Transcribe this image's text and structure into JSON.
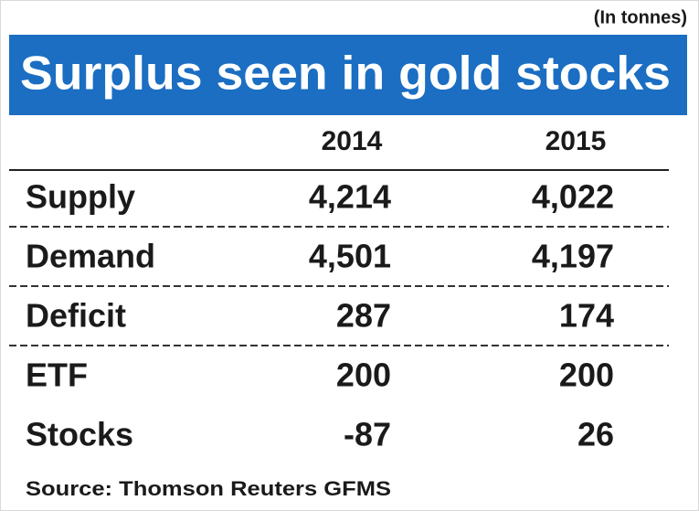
{
  "unit_note": "(In tonnes)",
  "header": {
    "title": "Surplus seen in gold stocks"
  },
  "table": {
    "columns": [
      "2014",
      "2015"
    ],
    "rows": [
      [
        "Supply",
        "4,214",
        "4,022"
      ],
      [
        "Demand",
        "4,501",
        "4,197"
      ],
      [
        "Deficit",
        "287",
        "174"
      ],
      [
        "ETF",
        "200",
        "200"
      ],
      [
        "Stocks",
        "-87",
        "26"
      ]
    ]
  },
  "source": "Source: Thomson Reuters GFMS"
}
